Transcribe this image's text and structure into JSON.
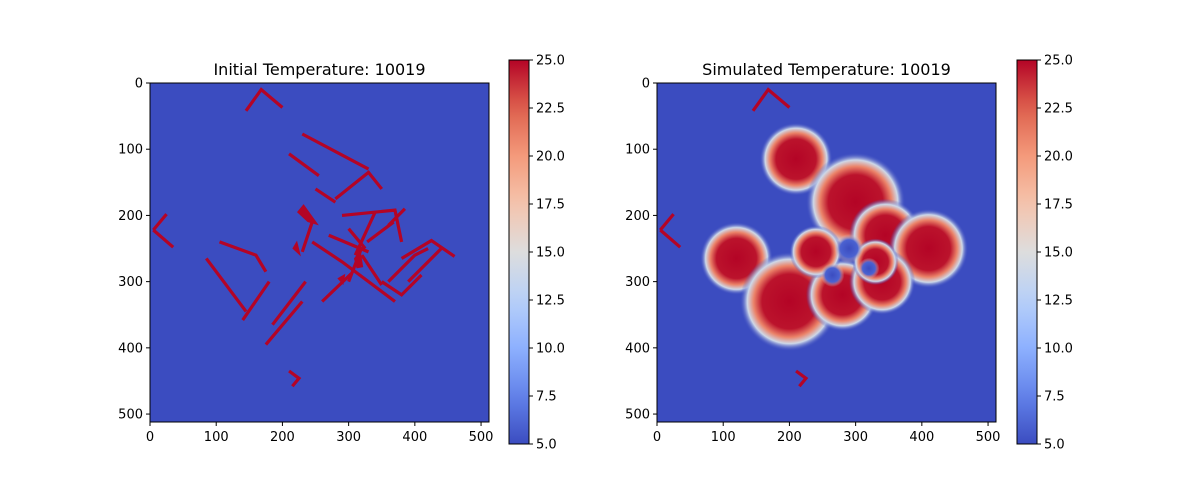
{
  "chart_data": [
    {
      "type": "heatmap",
      "title": "Initial Temperature: 10019",
      "xlim": [
        0,
        512
      ],
      "ylim": [
        512,
        0
      ],
      "xticks": [
        "0",
        "100",
        "200",
        "300",
        "400",
        "500"
      ],
      "yticks": [
        "0",
        "100",
        "200",
        "300",
        "400",
        "500"
      ],
      "colorbar": {
        "colormap": "coolwarm",
        "range": [
          5.0,
          25.0
        ],
        "ticks": [
          "5.0",
          "7.5",
          "10.0",
          "12.5",
          "15.0",
          "17.5",
          "20.0",
          "22.5",
          "25.0"
        ]
      },
      "background_value": 5.0,
      "hot_value": 25.0,
      "walls": [
        [
          [
            145,
            42
          ],
          [
            168,
            10
          ],
          [
            200,
            37
          ]
        ],
        [
          [
            5,
            222
          ],
          [
            25,
            198
          ]
        ],
        [
          [
            5,
            222
          ],
          [
            35,
            248
          ]
        ],
        [
          [
            210,
            435
          ],
          [
            225,
            446
          ],
          [
            215,
            458
          ]
        ],
        [
          [
            230,
            77
          ],
          [
            330,
            130
          ]
        ],
        [
          [
            210,
            107
          ],
          [
            255,
            140
          ]
        ],
        [
          [
            250,
            160
          ],
          [
            280,
            180
          ]
        ],
        [
          [
            280,
            175
          ],
          [
            330,
            135
          ],
          [
            350,
            160
          ]
        ],
        [
          [
            290,
            200
          ],
          [
            370,
            192
          ],
          [
            380,
            240
          ]
        ],
        [
          [
            300,
            220
          ],
          [
            325,
            250
          ]
        ],
        [
          [
            328,
            240
          ],
          [
            368,
            210
          ]
        ],
        [
          [
            245,
            210
          ],
          [
            230,
            255
          ]
        ],
        [
          [
            270,
            230
          ],
          [
            330,
            255
          ]
        ],
        [
          [
            320,
            248
          ],
          [
            300,
            300
          ]
        ],
        [
          [
            320,
            260
          ],
          [
            350,
            305
          ]
        ],
        [
          [
            340,
            195
          ],
          [
            310,
            260
          ]
        ],
        [
          [
            305,
            287
          ],
          [
            260,
            330
          ]
        ],
        [
          [
            175,
            395
          ],
          [
            230,
            330
          ]
        ],
        [
          [
            185,
            365
          ],
          [
            235,
            300
          ]
        ],
        [
          [
            140,
            358
          ],
          [
            180,
            300
          ]
        ],
        [
          [
            85,
            265
          ],
          [
            145,
            345
          ]
        ],
        [
          [
            105,
            240
          ],
          [
            160,
            260
          ],
          [
            175,
            285
          ]
        ],
        [
          [
            245,
            240
          ],
          [
            290,
            270
          ],
          [
            330,
            300
          ]
        ],
        [
          [
            350,
            300
          ],
          [
            380,
            320
          ],
          [
            410,
            290
          ]
        ],
        [
          [
            330,
            300
          ],
          [
            370,
            330
          ]
        ],
        [
          [
            360,
            300
          ],
          [
            400,
            260
          ],
          [
            420,
            250
          ]
        ],
        [
          [
            380,
            265
          ],
          [
            425,
            238
          ],
          [
            460,
            262
          ]
        ],
        [
          [
            390,
            300
          ],
          [
            440,
            250
          ]
        ],
        [
          [
            385,
            190
          ],
          [
            360,
            215
          ]
        ]
      ],
      "blobs": [
        [
          [
            222,
            195
          ],
          [
            232,
            183
          ],
          [
            255,
            215
          ],
          [
            238,
            210
          ]
        ],
        [
          [
            215,
            250
          ],
          [
            222,
            238
          ],
          [
            228,
            262
          ]
        ],
        [
          [
            308,
            265
          ],
          [
            318,
            252
          ],
          [
            322,
            278
          ],
          [
            312,
            280
          ]
        ],
        [
          [
            283,
            295
          ],
          [
            295,
            288
          ],
          [
            292,
            305
          ]
        ]
      ]
    },
    {
      "type": "heatmap",
      "title": "Simulated Temperature: 10019",
      "xlim": [
        0,
        512
      ],
      "ylim": [
        512,
        0
      ],
      "xticks": [
        "0",
        "100",
        "200",
        "300",
        "400",
        "500"
      ],
      "yticks": [
        "0",
        "100",
        "200",
        "300",
        "400",
        "500"
      ],
      "colorbar": {
        "colormap": "coolwarm",
        "range": [
          5.0,
          25.0
        ],
        "ticks": [
          "5.0",
          "7.5",
          "10.0",
          "12.5",
          "15.0",
          "17.5",
          "20.0",
          "22.5",
          "25.0"
        ]
      },
      "background_value": 5.0,
      "hot_value": 25.0,
      "walls": [
        [
          [
            145,
            42
          ],
          [
            168,
            10
          ],
          [
            200,
            37
          ]
        ],
        [
          [
            5,
            222
          ],
          [
            25,
            198
          ]
        ],
        [
          [
            5,
            222
          ],
          [
            35,
            248
          ]
        ],
        [
          [
            210,
            435
          ],
          [
            225,
            446
          ],
          [
            215,
            458
          ]
        ]
      ],
      "hot_regions": [
        {
          "center": [
            210,
            115
          ],
          "radius": 55
        },
        {
          "center": [
            300,
            180
          ],
          "radius": 75
        },
        {
          "center": [
            345,
            230
          ],
          "radius": 55
        },
        {
          "center": [
            410,
            250
          ],
          "radius": 60
        },
        {
          "center": [
            120,
            265
          ],
          "radius": 55
        },
        {
          "center": [
            200,
            330
          ],
          "radius": 75
        },
        {
          "center": [
            280,
            320
          ],
          "radius": 55
        },
        {
          "center": [
            340,
            300
          ],
          "radius": 50
        },
        {
          "center": [
            240,
            255
          ],
          "radius": 40
        },
        {
          "center": [
            330,
            270
          ],
          "radius": 35
        }
      ],
      "cold_regions": [
        {
          "center": [
            290,
            250
          ],
          "radius": 22
        },
        {
          "center": [
            320,
            280
          ],
          "radius": 16
        },
        {
          "center": [
            265,
            290
          ],
          "radius": 18
        }
      ]
    }
  ]
}
